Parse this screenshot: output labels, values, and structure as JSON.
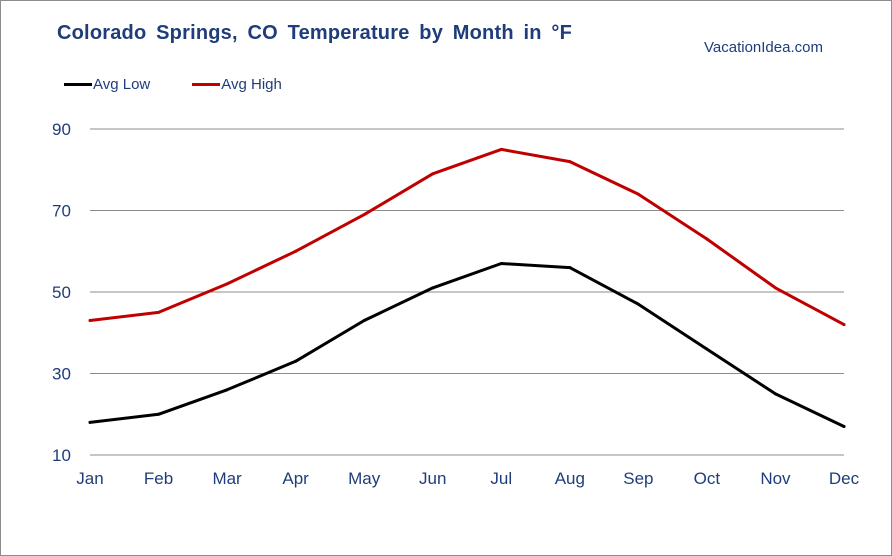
{
  "chart_data": {
    "type": "line",
    "title": "Colorado Springs, CO Temperature by Month in °F",
    "source_label": "VacationIdea.com",
    "categories": [
      "Jan",
      "Feb",
      "Mar",
      "Apr",
      "May",
      "Jun",
      "Jul",
      "Aug",
      "Sep",
      "Oct",
      "Nov",
      "Dec"
    ],
    "series": [
      {
        "name": "Avg Low",
        "color": "#000000",
        "values": [
          18,
          20,
          26,
          33,
          43,
          51,
          57,
          56,
          47,
          36,
          25,
          17
        ]
      },
      {
        "name": "Avg High",
        "color": "#c00000",
        "values": [
          43,
          45,
          52,
          60,
          69,
          79,
          85,
          82,
          74,
          63,
          51,
          42
        ]
      }
    ],
    "ylim": [
      10,
      90
    ],
    "yticks": [
      10,
      30,
      50,
      70,
      90
    ],
    "grid": true,
    "legend_position": "top-left",
    "axis_text_color": "#1f3d7a",
    "grid_color": "#8c8c8c"
  }
}
